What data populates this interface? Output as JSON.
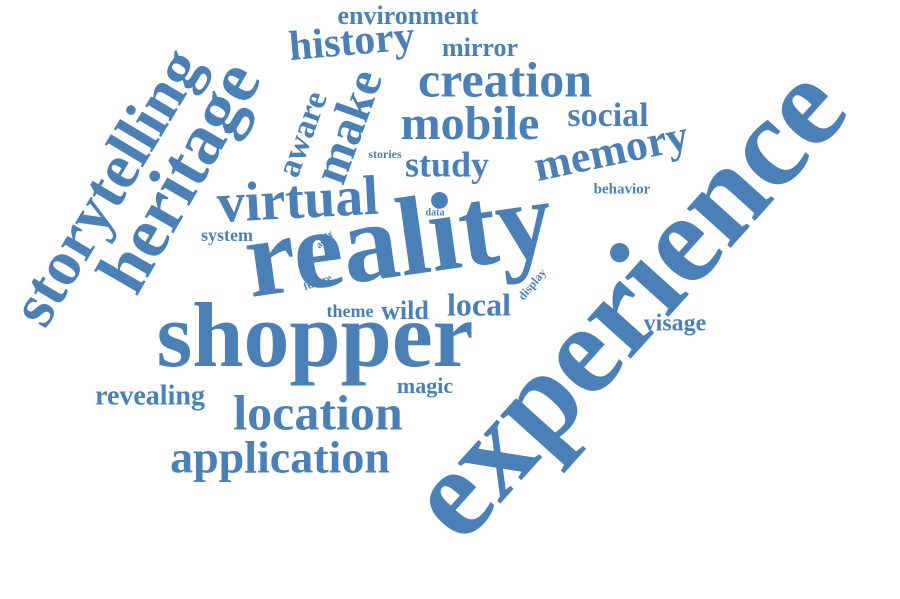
{
  "words": [
    "experience",
    "reality",
    "shopper",
    "storytelling",
    "heritage",
    "virtual",
    "history",
    "environment",
    "mirror",
    "creation",
    "mobile",
    "social",
    "memory",
    "study",
    "make",
    "aware",
    "stories",
    "behavior",
    "data",
    "system",
    "addr",
    "value",
    "future",
    "display",
    "theme",
    "wild",
    "local",
    "visage",
    "revealing",
    "magic",
    "location",
    "application"
  ]
}
